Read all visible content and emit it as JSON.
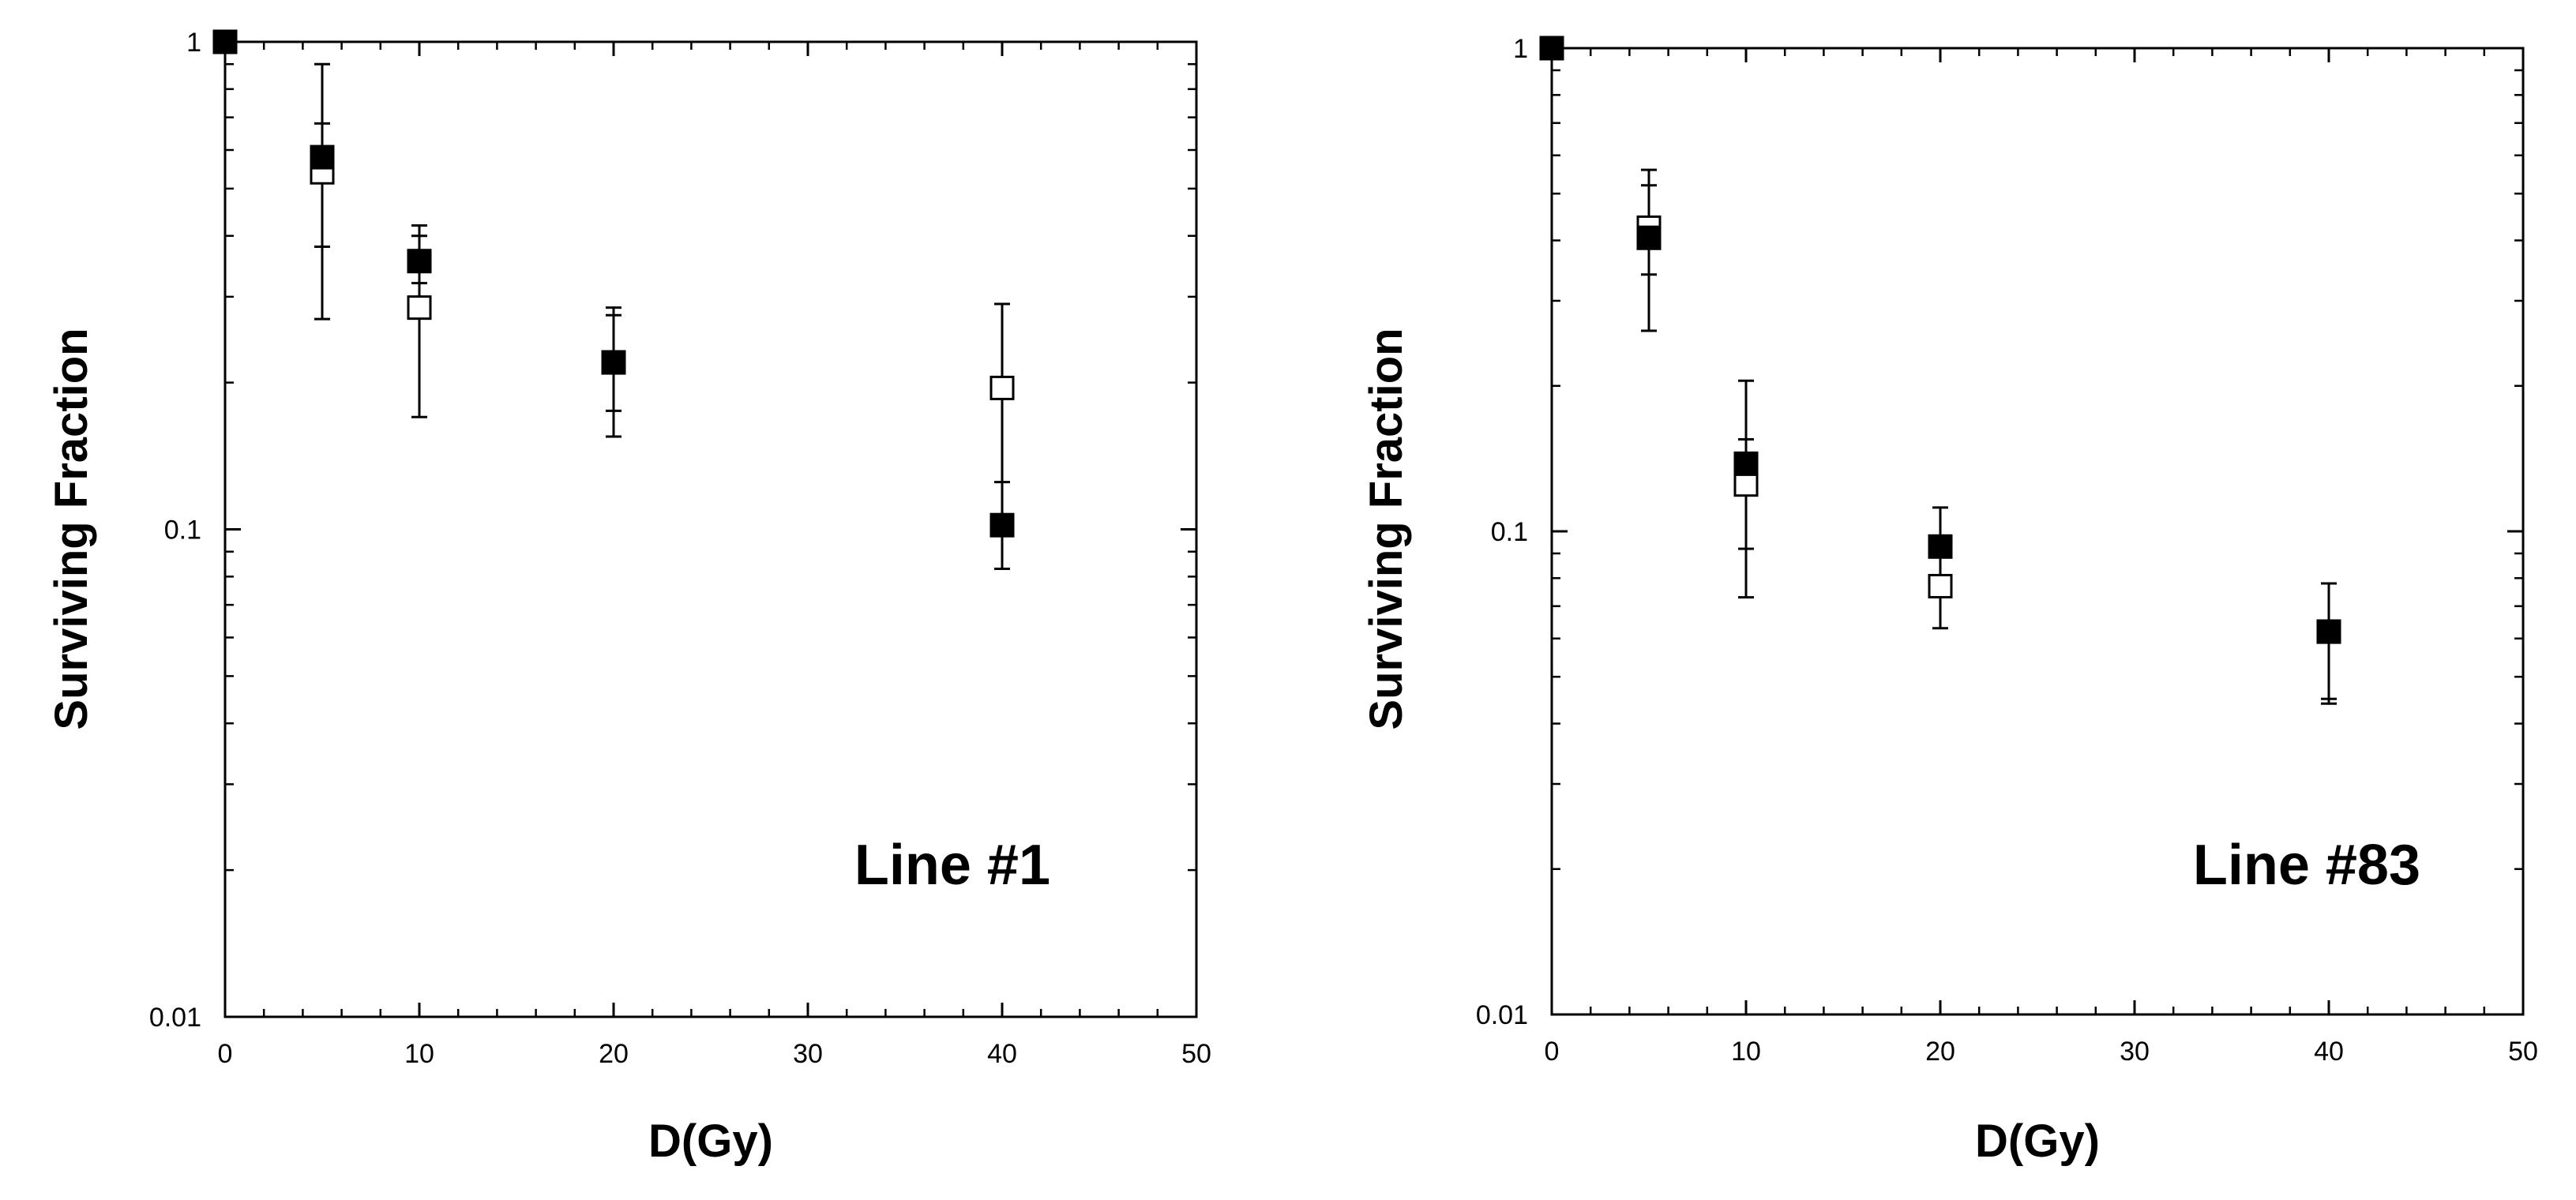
{
  "chart_data": [
    {
      "type": "scatter",
      "panel_label": "Line #1",
      "xlabel": "D(Gy)",
      "ylabel": "Surviving Fraction",
      "xlim": [
        0,
        50
      ],
      "ylim": [
        0.01,
        1
      ],
      "yscale": "log",
      "xticks": [
        "0",
        "10",
        "20",
        "30",
        "40",
        "50"
      ],
      "yticks": [
        "0.01",
        "0.1",
        "1"
      ],
      "grid": false,
      "legend": "none",
      "series": [
        {
          "marker": "filled-square",
          "color": "#000000",
          "points": [
            {
              "x": 0,
              "y": 1.0
            },
            {
              "x": 5,
              "y": 0.58,
              "err_low": 0.38,
              "err_high": 0.9
            },
            {
              "x": 10,
              "y": 0.355,
              "err_low": 0.32,
              "err_high": 0.42
            },
            {
              "x": 20,
              "y": 0.22,
              "err_low": 0.175,
              "err_high": 0.275
            },
            {
              "x": 40,
              "y": 0.102,
              "err_low": 0.083,
              "err_high": 0.125
            }
          ]
        },
        {
          "marker": "open-square",
          "color": "#000000",
          "points": [
            {
              "x": 5,
              "y": 0.54,
              "err_low": 0.27,
              "err_high": 0.68
            },
            {
              "x": 10,
              "y": 0.285,
              "err_low": 0.17,
              "err_high": 0.4
            },
            {
              "x": 20,
              "y": 0.22,
              "err_low": 0.155,
              "err_high": 0.285
            },
            {
              "x": 40,
              "y": 0.195,
              "err_low": 0.102,
              "err_high": 0.29
            }
          ]
        }
      ]
    },
    {
      "type": "scatter",
      "panel_label": "Line #83",
      "xlabel": "D(Gy)",
      "ylabel": "Surviving Fraction",
      "xlim": [
        0,
        50
      ],
      "ylim": [
        0.01,
        1
      ],
      "yscale": "log",
      "xticks": [
        "0",
        "10",
        "20",
        "30",
        "40",
        "50"
      ],
      "yticks": [
        "0.01",
        "0.1",
        "1"
      ],
      "grid": false,
      "legend": "none",
      "series": [
        {
          "marker": "filled-square",
          "color": "#000000",
          "points": [
            {
              "x": 0,
              "y": 1.0
            },
            {
              "x": 5,
              "y": 0.405,
              "err_low": 0.26,
              "err_high": 0.52
            },
            {
              "x": 10,
              "y": 0.138,
              "err_low": 0.092,
              "err_high": 0.205
            },
            {
              "x": 20,
              "y": 0.093,
              "err_low": 0.078,
              "err_high": 0.112
            },
            {
              "x": 40,
              "y": 0.062,
              "err_low": 0.044,
              "err_high": 0.078
            }
          ]
        },
        {
          "marker": "open-square",
          "color": "#000000",
          "points": [
            {
              "x": 5,
              "y": 0.425,
              "err_low": 0.34,
              "err_high": 0.56
            },
            {
              "x": 10,
              "y": 0.125,
              "err_low": 0.073,
              "err_high": 0.155
            },
            {
              "x": 20,
              "y": 0.077,
              "err_low": 0.063,
              "err_high": 0.093
            },
            {
              "x": 40,
              "y": 0.062,
              "err_low": 0.045,
              "err_high": 0.078
            }
          ]
        }
      ]
    }
  ]
}
